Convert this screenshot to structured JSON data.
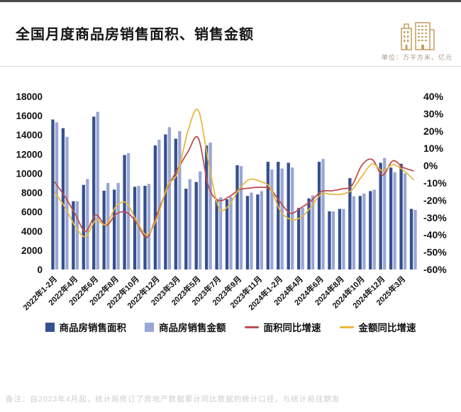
{
  "header": {
    "title": "全国月度商品房销售面积、销售金额",
    "unit_note": "单位：万平方米、亿元"
  },
  "footer": {
    "note": "备注：自2023年4月起，统计局修订了房地产数据累计同比数据的统计口径，与统计局往期发"
  },
  "colors": {
    "area_bar": "#35508e",
    "amount_bar": "#9aa6d4",
    "area_line": "#bf4e4e",
    "amount_line": "#e8b93e",
    "axis_text": "#111111",
    "icon": "#c9a063"
  },
  "chart_data": {
    "type": "bar",
    "subtype": "dual-axis bar + line combo",
    "n_groups": 36,
    "x_tick_labels": [
      "2022年1-2月",
      "2022年4月",
      "2022年6月",
      "2022年8月",
      "2022年10月",
      "2022年12月",
      "2023年3月",
      "2023年5月",
      "2023年7月",
      "2023年9月",
      "2023年11月",
      "2024年1-2月",
      "2024年4月",
      "2024年6月",
      "2024年8月",
      "2024年10月",
      "2024年12月",
      "2025年3月"
    ],
    "x_tick_positions": [
      0,
      2,
      4,
      6,
      8,
      10,
      12,
      14,
      16,
      18,
      20,
      22,
      24,
      26,
      28,
      30,
      32,
      34
    ],
    "y_left": {
      "min": 0,
      "max": 18000,
      "step": 2000
    },
    "y_right": {
      "min": -60,
      "max": 40,
      "step": 10,
      "format": "percent"
    },
    "grid": false,
    "legend_position": "bottom",
    "series": [
      {
        "name": "商品房销售面积",
        "kind": "bar",
        "axis": "left",
        "values": [
          15600,
          14700,
          7100,
          8800,
          15900,
          8200,
          8300,
          11900,
          8600,
          8700,
          12900,
          14050,
          13600,
          8400,
          9100,
          12900,
          7200,
          7300,
          10850,
          7650,
          7800,
          11200,
          11200,
          11100,
          6400,
          7400,
          11200,
          6050,
          6300,
          9500,
          7650,
          8150,
          11100,
          10600,
          11000,
          6300
        ]
      },
      {
        "name": "商品房销售金额",
        "kind": "bar",
        "axis": "left",
        "values": [
          15300,
          13800,
          7100,
          9400,
          16400,
          9000,
          9000,
          12100,
          8700,
          8900,
          13500,
          14800,
          14400,
          9400,
          10200,
          13200,
          7500,
          7550,
          10750,
          8000,
          8150,
          10400,
          10500,
          10600,
          6400,
          7700,
          11500,
          6050,
          6300,
          7600,
          7900,
          8300,
          11600,
          10100,
          10000,
          6200
        ]
      },
      {
        "name": "面积同比增速",
        "kind": "line",
        "axis": "right",
        "values": [
          -9.5,
          -18,
          -28,
          -38,
          -28.5,
          -34.5,
          -28,
          -27,
          -33,
          -41.5,
          -28,
          -13,
          -2,
          8,
          16,
          -12,
          -20,
          -18,
          -14,
          -13,
          -12.5,
          -13.5,
          -21,
          -27.5,
          -24.5,
          -20.5,
          -15,
          -14.5,
          -13.5,
          -11.5,
          0.5,
          3.5,
          -5.5,
          2.8,
          -1,
          -3
        ]
      },
      {
        "name": "金额同比增速",
        "kind": "line",
        "axis": "right",
        "values": [
          -15.5,
          -24,
          -35,
          -41,
          -31.5,
          -34,
          -23.5,
          -21.5,
          -32,
          -40,
          -30,
          -12,
          -4,
          20,
          32,
          2,
          -24,
          -23,
          -13.5,
          -8,
          -9,
          -12.5,
          -26,
          -31,
          -30,
          -24,
          -16.5,
          -16.5,
          -16.5,
          -14,
          -6,
          1,
          -3,
          0.5,
          -2.5,
          -8
        ]
      }
    ]
  }
}
